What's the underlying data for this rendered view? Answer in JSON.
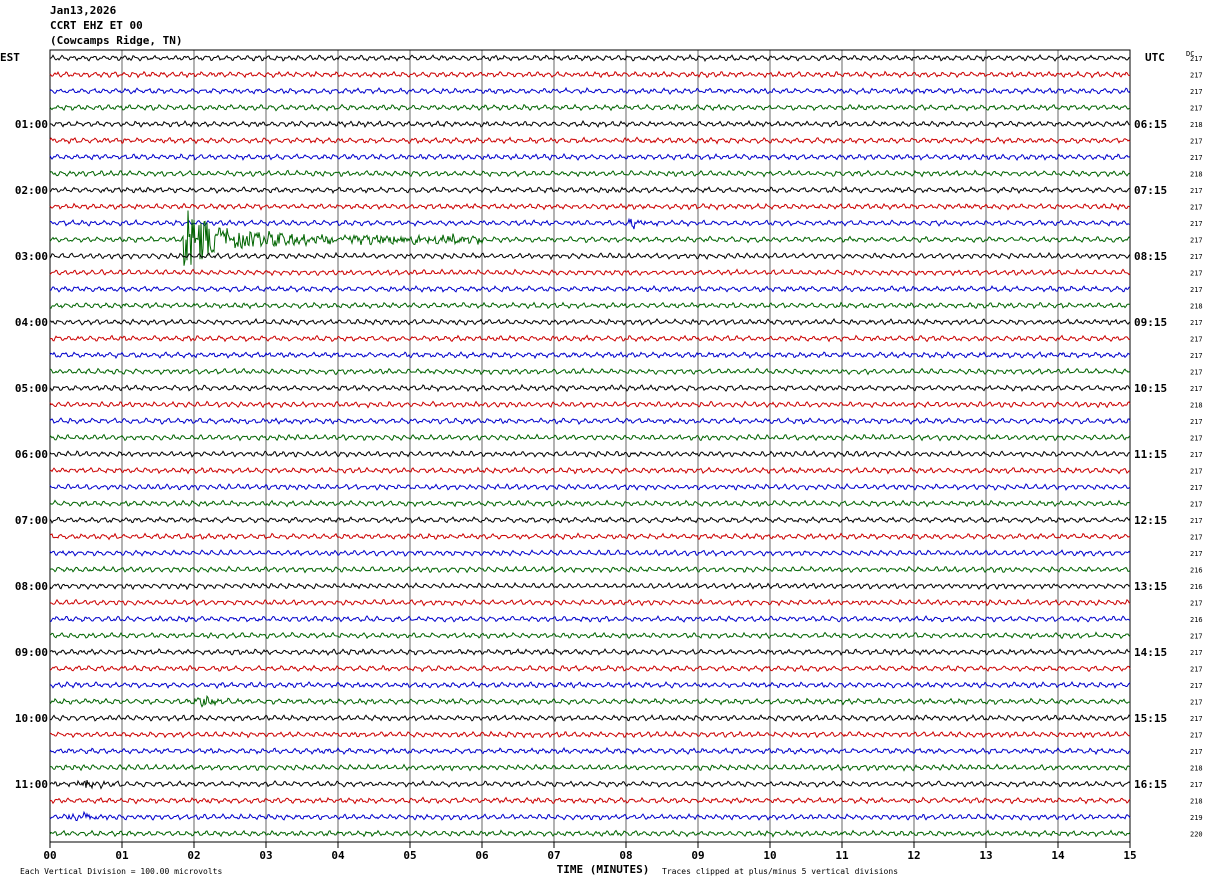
{
  "header": {
    "date": "Jan13,2026",
    "station": "CCRT EHZ ET 00",
    "location": "(Cowcamps Ridge, TN)"
  },
  "left_tz": "EST",
  "right_tz": "UTC",
  "dc_label": "DC",
  "x_axis_label": "TIME (MINUTES)",
  "footer_left": "Each Vertical Division =  100.00 microvolts",
  "footer_right": "Traces clipped at plus/minus 5 vertical divisions",
  "colors": [
    "#000000",
    "#cc0000",
    "#0000cc",
    "#006400"
  ],
  "chart_data": {
    "type": "line",
    "description_kind": "helicorder",
    "x_ticks": [
      "00",
      "01",
      "02",
      "03",
      "04",
      "05",
      "06",
      "07",
      "08",
      "09",
      "10",
      "11",
      "12",
      "13",
      "14",
      "15"
    ],
    "xlim": [
      0,
      15
    ],
    "left_hour_labels": [
      "01:00",
      "02:00",
      "03:00",
      "04:00",
      "05:00",
      "06:00",
      "07:00",
      "08:00",
      "09:00",
      "10:00",
      "11:00"
    ],
    "right_hour_labels": [
      "06:15",
      "07:15",
      "08:15",
      "09:15",
      "10:15",
      "11:15",
      "12:15",
      "13:15",
      "14:15",
      "15:15",
      "16:15"
    ],
    "dc_values": [
      217,
      217,
      217,
      217,
      218,
      217,
      217,
      218,
      217,
      217,
      217,
      217,
      217,
      217,
      217,
      218,
      217,
      217,
      217,
      217,
      217,
      218,
      217,
      217,
      217,
      217,
      217,
      217,
      217,
      217,
      217,
      216,
      216,
      217,
      216,
      217,
      217,
      217,
      217,
      217,
      217,
      217,
      217,
      218,
      217,
      218,
      219,
      220
    ],
    "events": [
      {
        "trace": 11,
        "start_min": 1.85,
        "end_min": 6.0,
        "peak_min": 2.05,
        "amplitude": "clipped"
      },
      {
        "trace": 10,
        "start_min": 8.0,
        "end_min": 8.8,
        "peak_min": 8.1,
        "amplitude": "small"
      },
      {
        "trace": 44,
        "start_min": 0.05,
        "end_min": 1.0,
        "peak_min": 0.5,
        "amplitude": "small"
      },
      {
        "trace": 46,
        "start_min": 0.1,
        "end_min": 0.8,
        "peak_min": 0.45,
        "amplitude": "small"
      },
      {
        "trace": 39,
        "start_min": 1.9,
        "end_min": 2.6,
        "peak_min": 2.2,
        "amplitude": "small"
      }
    ]
  }
}
